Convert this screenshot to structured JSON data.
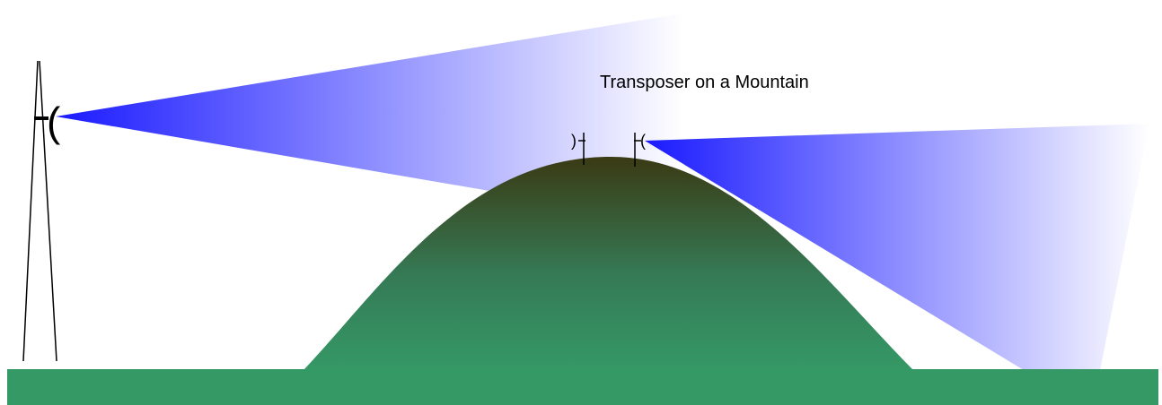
{
  "diagram": {
    "title": "Transposer on a Mountain",
    "glyphs": {
      "tower_antenna": "(",
      "receive_antenna": ")",
      "transmit_antenna": "("
    },
    "colors": {
      "ground": "#359966",
      "mountain_top": "#3a3a14",
      "mountain_base": "#359966",
      "beam": "#1a1aff",
      "beam_fade": "#ffffff",
      "line": "#000000",
      "background": "#ffffff"
    },
    "elements": {
      "tower": "transmission-tower",
      "mountain": "mountain",
      "beam_from_tower": "signal-beam",
      "beam_from_transposer": "signal-beam",
      "receive_antenna": "antenna-icon",
      "transmit_antenna": "antenna-icon"
    }
  }
}
